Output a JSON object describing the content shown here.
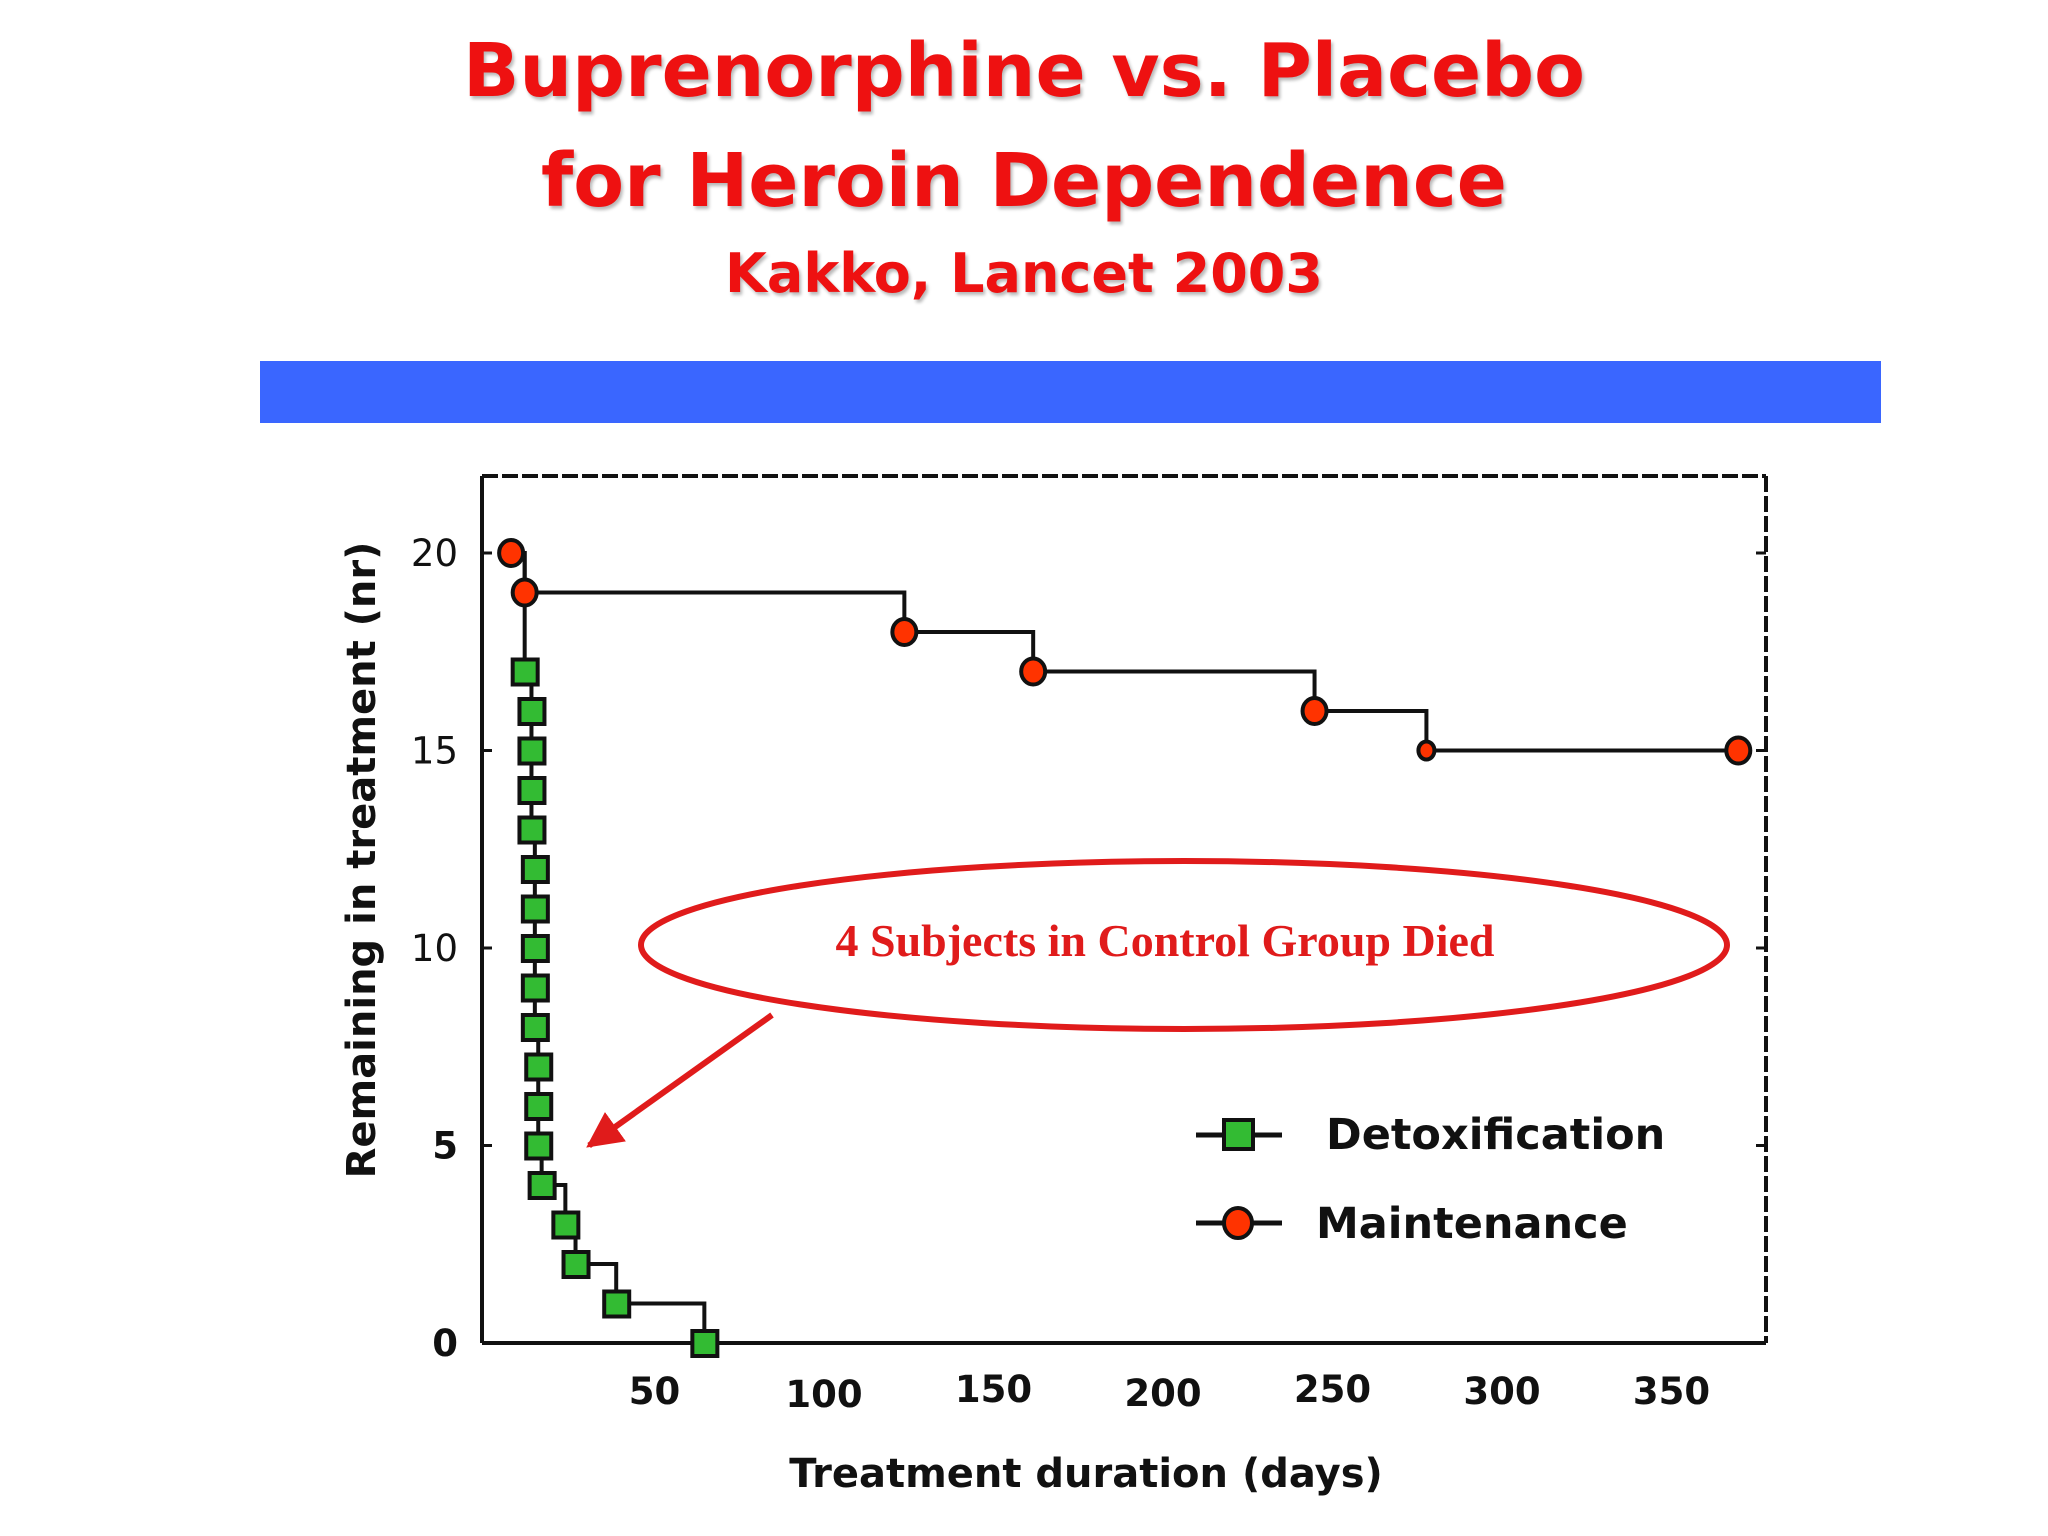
{
  "slide": {
    "title_line1": "Buprenorphine vs. Placebo",
    "title_line2": "for Heroin Dependence",
    "subtitle": "Kakko, Lancet 2003"
  },
  "colors": {
    "title": "#ee1111",
    "banner": "#3a66ff",
    "detox_marker": "#33bb33",
    "maintenance_marker": "#ff3300",
    "annotation": "#e01b1b"
  },
  "chart_data": {
    "type": "line",
    "subtype": "step",
    "xlabel": "Treatment duration (days)",
    "ylabel": "Remaining in treatment  (nr)",
    "xlim": [
      0,
      380
    ],
    "ylim": [
      0,
      22
    ],
    "x_ticks": [
      50,
      100,
      150,
      200,
      250,
      300,
      350
    ],
    "y_ticks": [
      0,
      5,
      10,
      15,
      20
    ],
    "legend_position": "lower-right",
    "series": [
      {
        "name": "Detoxification",
        "marker": "square",
        "points": [
          {
            "x": 12,
            "y": 17
          },
          {
            "x": 14,
            "y": 16
          },
          {
            "x": 14,
            "y": 15
          },
          {
            "x": 14,
            "y": 14
          },
          {
            "x": 14,
            "y": 13
          },
          {
            "x": 15,
            "y": 12
          },
          {
            "x": 15,
            "y": 11
          },
          {
            "x": 15,
            "y": 10
          },
          {
            "x": 15,
            "y": 9
          },
          {
            "x": 15,
            "y": 8
          },
          {
            "x": 16,
            "y": 7
          },
          {
            "x": 16,
            "y": 6
          },
          {
            "x": 16,
            "y": 5
          },
          {
            "x": 17,
            "y": 4
          },
          {
            "x": 24,
            "y": 3
          },
          {
            "x": 27,
            "y": 2
          },
          {
            "x": 39,
            "y": 1
          },
          {
            "x": 65,
            "y": 0
          }
        ]
      },
      {
        "name": "Maintenance",
        "marker": "circle",
        "points": [
          {
            "x": 8,
            "y": 20
          },
          {
            "x": 12,
            "y": 19
          },
          {
            "x": 124,
            "y": 18
          },
          {
            "x": 162,
            "y": 17
          },
          {
            "x": 245,
            "y": 16
          },
          {
            "x": 278,
            "y": 15
          },
          {
            "x": 370,
            "y": 15
          }
        ]
      }
    ],
    "annotation": {
      "text": "4 Subjects in Control Group Died",
      "points_to": {
        "x": 31,
        "y": 5
      }
    }
  }
}
